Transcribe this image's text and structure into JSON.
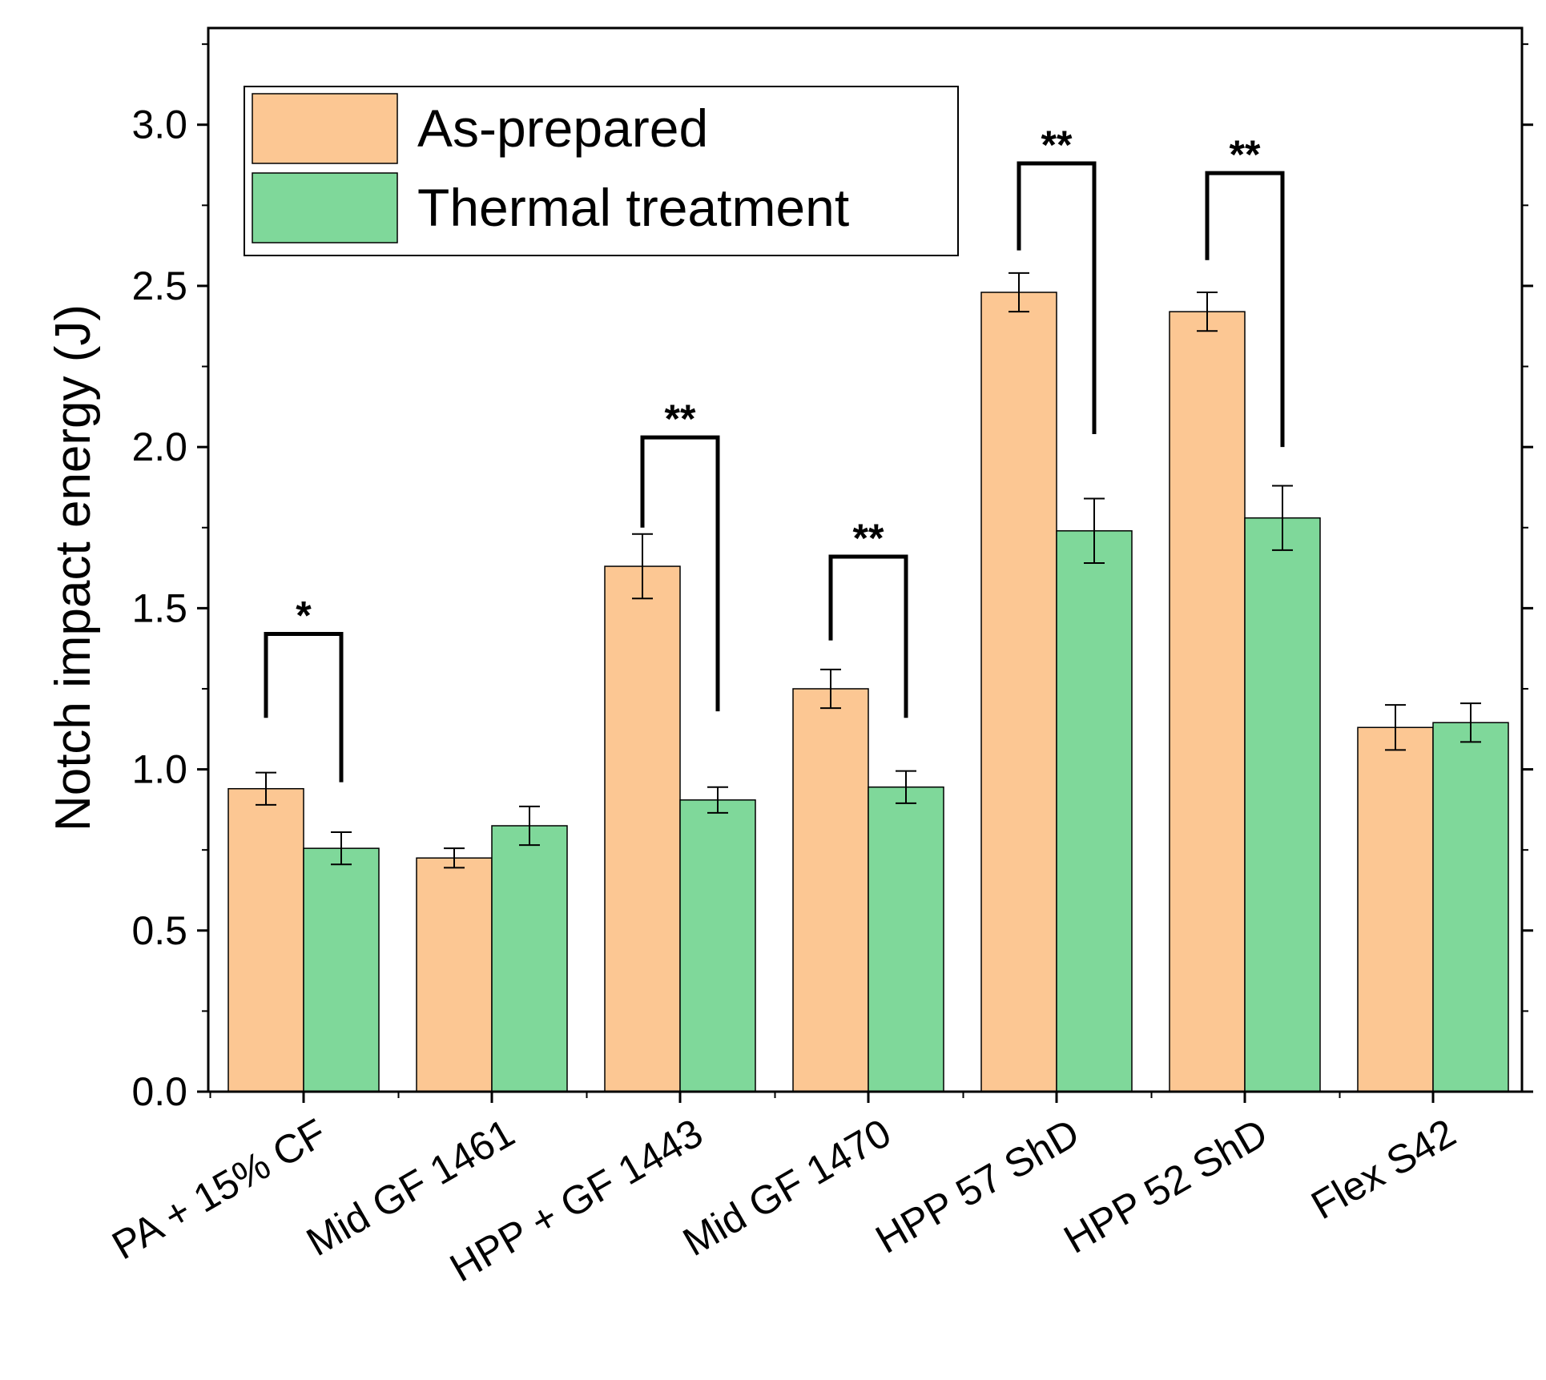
{
  "chart_data": {
    "type": "bar",
    "title": "",
    "xlabel": "",
    "ylabel": "Notch impact energy (J)",
    "ylim": [
      0,
      3.3
    ],
    "yticks": [
      "0.0",
      "0.5",
      "1.0",
      "1.5",
      "2.0",
      "2.5",
      "3.0"
    ],
    "categories": [
      "PA + 15% CF",
      "Mid GF 1461",
      "HPP + GF 1443",
      "Mid GF 1470",
      "HPP 57 ShD",
      "HPP 52 ShD",
      "Flex S42"
    ],
    "series": [
      {
        "name": "As-prepared",
        "color": "#FCC793",
        "values": [
          0.94,
          0.725,
          1.63,
          1.25,
          2.48,
          2.42,
          1.13
        ],
        "errors": [
          0.05,
          0.03,
          0.1,
          0.06,
          0.06,
          0.06,
          0.07
        ]
      },
      {
        "name": "Thermal treatment",
        "color": "#7FD89A",
        "values": [
          0.755,
          0.825,
          0.905,
          0.945,
          1.74,
          1.78,
          1.145
        ],
        "errors": [
          0.05,
          0.06,
          0.04,
          0.05,
          0.1,
          0.1,
          0.06
        ]
      }
    ],
    "significance": [
      {
        "category": "PA + 15% CF",
        "label": "*",
        "left_start": 1.16,
        "right_start": 0.96,
        "top": 1.42
      },
      {
        "category": "HPP + GF 1443",
        "label": "**",
        "left_start": 1.75,
        "right_start": 1.18,
        "top": 2.03
      },
      {
        "category": "Mid GF 1470",
        "label": "**",
        "left_start": 1.4,
        "right_start": 1.16,
        "top": 1.66
      },
      {
        "category": "HPP 57 ShD",
        "label": "**",
        "left_start": 2.61,
        "right_start": 2.04,
        "top": 2.88
      },
      {
        "category": "HPP 52 ShD",
        "label": "**",
        "left_start": 2.58,
        "right_start": 2.0,
        "top": 2.85
      }
    ],
    "legend_position": "top-left",
    "grid": false
  }
}
